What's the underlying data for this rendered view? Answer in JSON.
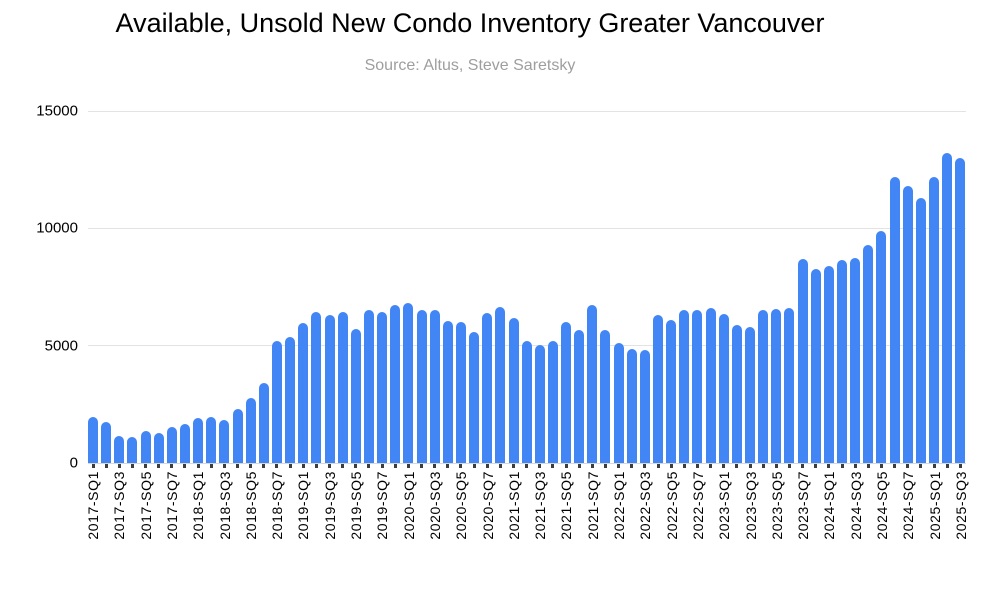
{
  "chart_data": {
    "type": "bar",
    "title": "Available, Unsold New Condo Inventory Greater Vancouver",
    "subtitle": "Source: Altus, Steve Saretsky",
    "legend": "none",
    "grid": "horizontal",
    "ylim": [
      0,
      15000
    ],
    "y_ticks": [
      0,
      5000,
      10000,
      15000
    ],
    "bar_color": "#4285f4",
    "title_color": "#000000",
    "subtitle_color": "#9e9e9e",
    "categories": [
      "2017-SQ1",
      "2017-SQ2",
      "2017-SQ3",
      "2017-SQ4",
      "2017-SQ5",
      "2017-SQ6",
      "2017-SQ7",
      "2017-SQ8",
      "2018-SQ1",
      "2018-SQ2",
      "2018-SQ3",
      "2018-SQ4",
      "2018-SQ5",
      "2018-SQ6",
      "2018-SQ7",
      "2018-SQ8",
      "2019-SQ1",
      "2019-SQ2",
      "2019-SQ3",
      "2019-SQ4",
      "2019-SQ5",
      "2019-SQ6",
      "2019-SQ7",
      "2019-SQ8",
      "2020-SQ1",
      "2020-SQ2",
      "2020-SQ3",
      "2020-SQ4",
      "2020-SQ5",
      "2020-SQ6",
      "2020-SQ7",
      "2020-SQ8",
      "2021-SQ1",
      "2021-SQ2",
      "2021-SQ3",
      "2021-SQ4",
      "2021-SQ5",
      "2021-SQ6",
      "2021-SQ7",
      "2021-SQ8",
      "2022-SQ1",
      "2022-SQ2",
      "2022-SQ3",
      "2022-SQ4",
      "2022-SQ5",
      "2022-SQ6",
      "2022-SQ7",
      "2022-SQ8",
      "2023-SQ1",
      "2023-SQ2",
      "2023-SQ3",
      "2023-SQ4",
      "2023-SQ5",
      "2023-SQ6",
      "2023-SQ7",
      "2023-SQ8",
      "2024-SQ1",
      "2024-SQ2",
      "2024-SQ3",
      "2024-SQ4",
      "2024-SQ5",
      "2024-SQ6",
      "2024-SQ7",
      "2024-SQ8",
      "2025-SQ1",
      "2025-SQ2",
      "2025-SQ3"
    ],
    "x_tick_labels": [
      "2017-SQ1",
      "2017-SQ3",
      "2017-SQ5",
      "2017-SQ7",
      "2018-SQ1",
      "2018-SQ3",
      "2018-SQ5",
      "2018-SQ7",
      "2019-SQ1",
      "2019-SQ3",
      "2019-SQ5",
      "2019-SQ7",
      "2020-SQ1",
      "2020-SQ3",
      "2020-SQ5",
      "2020-SQ7",
      "2021-SQ1",
      "2021-SQ3",
      "2021-SQ5",
      "2021-SQ7",
      "2022-SQ1",
      "2022-SQ3",
      "2022-SQ5",
      "2022-SQ7",
      "2023-SQ1",
      "2023-SQ3",
      "2023-SQ5",
      "2023-SQ7",
      "2024-SQ1",
      "2024-SQ3",
      "2024-SQ5",
      "2024-SQ7",
      "2025-SQ1",
      "2025-SQ3"
    ],
    "series": [
      {
        "name": "Available, Unsold New Condo Inventory",
        "values": [
          1950,
          1750,
          1150,
          1100,
          1350,
          1300,
          1550,
          1650,
          1900,
          1950,
          1850,
          2300,
          2750,
          3400,
          5200,
          5350,
          5950,
          6450,
          6300,
          6450,
          5700,
          6500,
          6450,
          6750,
          6800,
          6500,
          6500,
          6050,
          6000,
          5600,
          6400,
          6650,
          6200,
          5200,
          5050,
          5200,
          6000,
          5650,
          6750,
          5650,
          5100,
          4850,
          4800,
          6300,
          6100,
          6500,
          6500,
          6600,
          6350,
          5900,
          5800,
          6500,
          6550,
          6600,
          8700,
          8250,
          8400,
          8650,
          8750,
          9300,
          9900,
          12200,
          11800,
          11300,
          12200,
          13200,
          13000
        ]
      }
    ]
  }
}
